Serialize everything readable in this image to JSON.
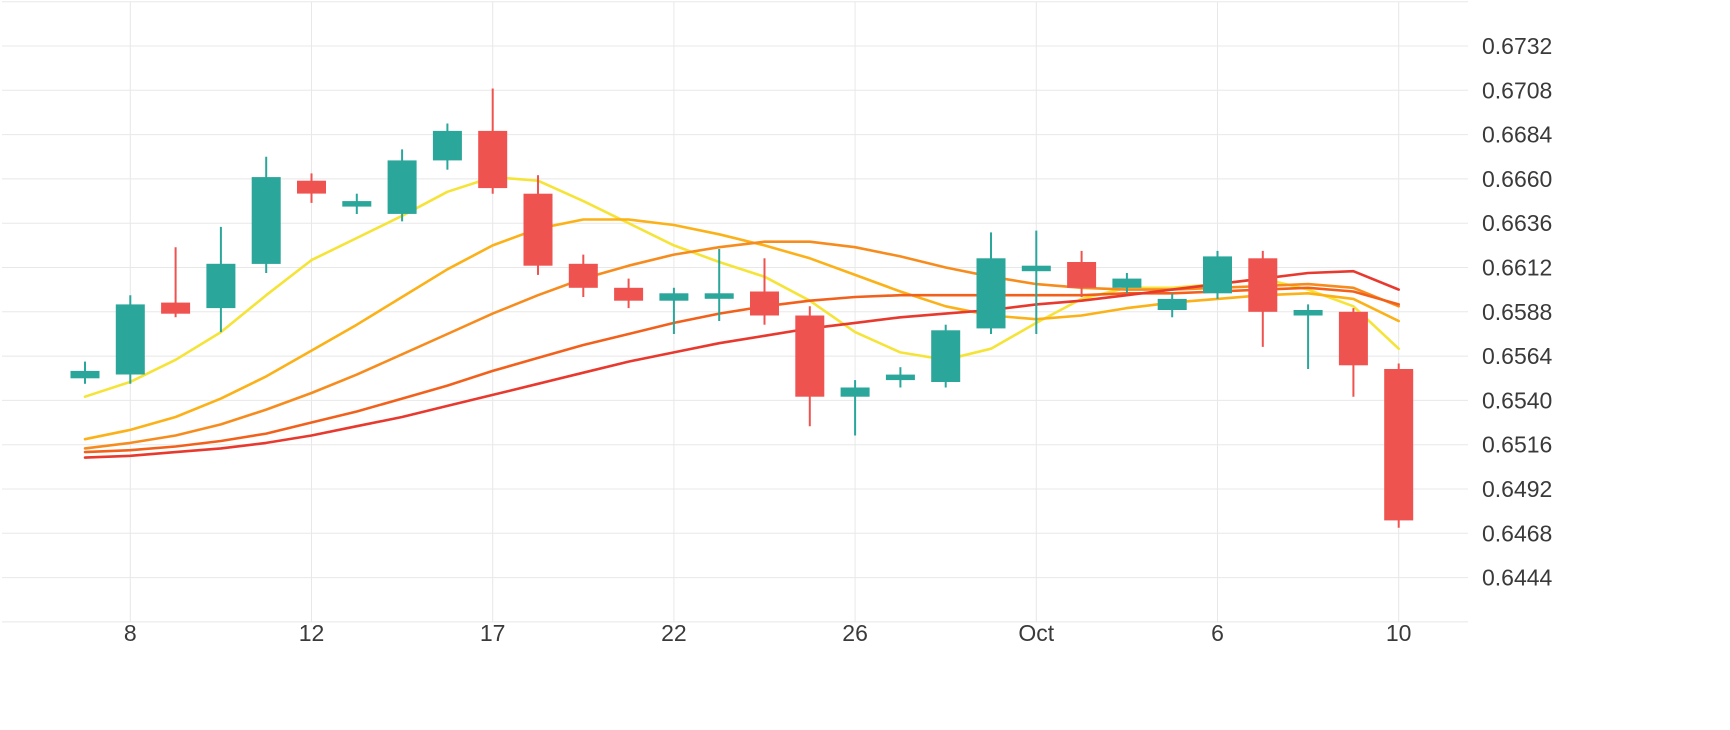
{
  "page": {
    "background": "#ffffff"
  },
  "chart_data": {
    "type": "candlestick",
    "title": "",
    "up_color": "#2aa69a",
    "down_color": "#ef5350",
    "grid_color": "#e8e8e8",
    "axis_text_color": "#3a3a3a",
    "y_axis": {
      "min": 0.6444,
      "max": 0.6732,
      "tick_step": 0.0024,
      "tick_values": [
        0.6732,
        0.6708,
        0.6684,
        0.666,
        0.6636,
        0.6612,
        0.6588,
        0.6564,
        0.654,
        0.6516,
        0.6492,
        0.6468,
        0.6444
      ],
      "tick_labels": [
        "0.6732",
        "0.6708",
        "0.6684",
        "0.6660",
        "0.6636",
        "0.6612",
        "0.6588",
        "0.6564",
        "0.6540",
        "0.6516",
        "0.6492",
        "0.6468",
        "0.6444"
      ],
      "extra_gridline_values": [
        0.6756,
        0.642
      ]
    },
    "x_axis": {
      "ticks": [
        {
          "index": 1,
          "label": "8"
        },
        {
          "index": 5,
          "label": "12"
        },
        {
          "index": 9,
          "label": "17"
        },
        {
          "index": 13,
          "label": "22"
        },
        {
          "index": 17,
          "label": "26"
        },
        {
          "index": 21,
          "label": "Oct"
        },
        {
          "index": 25,
          "label": "6"
        },
        {
          "index": 29,
          "label": "10"
        }
      ]
    },
    "candles": [
      {
        "open": 0.6552,
        "high": 0.6561,
        "low": 0.6549,
        "close": 0.6556
      },
      {
        "open": 0.6554,
        "high": 0.6597,
        "low": 0.6549,
        "close": 0.6592
      },
      {
        "open": 0.6593,
        "high": 0.6623,
        "low": 0.6585,
        "close": 0.6587
      },
      {
        "open": 0.659,
        "high": 0.6634,
        "low": 0.6577,
        "close": 0.6614
      },
      {
        "open": 0.6614,
        "high": 0.6672,
        "low": 0.6609,
        "close": 0.6661
      },
      {
        "open": 0.6659,
        "high": 0.6663,
        "low": 0.6647,
        "close": 0.6652
      },
      {
        "open": 0.6645,
        "high": 0.6652,
        "low": 0.6641,
        "close": 0.6648
      },
      {
        "open": 0.6641,
        "high": 0.6676,
        "low": 0.6637,
        "close": 0.667
      },
      {
        "open": 0.667,
        "high": 0.669,
        "low": 0.6665,
        "close": 0.6686
      },
      {
        "open": 0.6686,
        "high": 0.6709,
        "low": 0.6652,
        "close": 0.6655
      },
      {
        "open": 0.6652,
        "high": 0.6662,
        "low": 0.6608,
        "close": 0.6613
      },
      {
        "open": 0.6614,
        "high": 0.6619,
        "low": 0.6596,
        "close": 0.6601
      },
      {
        "open": 0.6601,
        "high": 0.6606,
        "low": 0.659,
        "close": 0.6594
      },
      {
        "open": 0.6594,
        "high": 0.6601,
        "low": 0.6576,
        "close": 0.6598
      },
      {
        "open": 0.6595,
        "high": 0.6622,
        "low": 0.6583,
        "close": 0.6598
      },
      {
        "open": 0.6599,
        "high": 0.6617,
        "low": 0.6581,
        "close": 0.6586
      },
      {
        "open": 0.6586,
        "high": 0.6591,
        "low": 0.6526,
        "close": 0.6542
      },
      {
        "open": 0.6542,
        "high": 0.6551,
        "low": 0.6521,
        "close": 0.6547
      },
      {
        "open": 0.6551,
        "high": 0.6558,
        "low": 0.6547,
        "close": 0.6554
      },
      {
        "open": 0.655,
        "high": 0.6581,
        "low": 0.6547,
        "close": 0.6578
      },
      {
        "open": 0.6579,
        "high": 0.6631,
        "low": 0.6576,
        "close": 0.6617
      },
      {
        "open": 0.661,
        "high": 0.6632,
        "low": 0.6576,
        "close": 0.6613
      },
      {
        "open": 0.6615,
        "high": 0.6621,
        "low": 0.6596,
        "close": 0.6601
      },
      {
        "open": 0.6601,
        "high": 0.6609,
        "low": 0.6598,
        "close": 0.6606
      },
      {
        "open": 0.6589,
        "high": 0.6598,
        "low": 0.6585,
        "close": 0.6595
      },
      {
        "open": 0.6598,
        "high": 0.6621,
        "low": 0.6595,
        "close": 0.6618
      },
      {
        "open": 0.6617,
        "high": 0.6621,
        "low": 0.6569,
        "close": 0.6588
      },
      {
        "open": 0.6586,
        "high": 0.6592,
        "low": 0.6557,
        "close": 0.6589
      },
      {
        "open": 0.6588,
        "high": 0.659,
        "low": 0.6542,
        "close": 0.6559
      },
      {
        "open": 0.6557,
        "high": 0.656,
        "low": 0.6471,
        "close": 0.6475
      }
    ],
    "ma_lines": [
      {
        "name": "ma-fast-yellow",
        "color": "#f5e437",
        "values": [
          0.6542,
          0.655,
          0.6562,
          0.6577,
          0.6597,
          0.6616,
          0.6628,
          0.664,
          0.6653,
          0.6661,
          0.6659,
          0.6648,
          0.6636,
          0.6624,
          0.6615,
          0.6607,
          0.6594,
          0.6577,
          0.6566,
          0.6562,
          0.6568,
          0.6582,
          0.6595,
          0.6601,
          0.6601,
          0.6603,
          0.6606,
          0.66,
          0.6591,
          0.6568
        ]
      },
      {
        "name": "ma-light-orange",
        "color": "#fbb117",
        "values": [
          0.6519,
          0.6524,
          0.6531,
          0.6541,
          0.6553,
          0.6567,
          0.6581,
          0.6596,
          0.6611,
          0.6624,
          0.6633,
          0.6638,
          0.6638,
          0.6635,
          0.663,
          0.6624,
          0.6617,
          0.6608,
          0.6599,
          0.6591,
          0.6586,
          0.6584,
          0.6586,
          0.659,
          0.6593,
          0.6595,
          0.6597,
          0.6598,
          0.6595,
          0.6583
        ]
      },
      {
        "name": "ma-orange",
        "color": "#f78c1e",
        "values": [
          0.6514,
          0.6517,
          0.6521,
          0.6527,
          0.6535,
          0.6544,
          0.6554,
          0.6565,
          0.6576,
          0.6587,
          0.6597,
          0.6606,
          0.6613,
          0.6619,
          0.6623,
          0.6626,
          0.6626,
          0.6623,
          0.6618,
          0.6612,
          0.6607,
          0.6603,
          0.6601,
          0.66,
          0.66,
          0.6601,
          0.6602,
          0.6603,
          0.6601,
          0.6591
        ]
      },
      {
        "name": "ma-dark-orange",
        "color": "#f2611c",
        "values": [
          0.6512,
          0.6513,
          0.6515,
          0.6518,
          0.6522,
          0.6528,
          0.6534,
          0.6541,
          0.6548,
          0.6556,
          0.6563,
          0.657,
          0.6576,
          0.6582,
          0.6587,
          0.6591,
          0.6594,
          0.6596,
          0.6597,
          0.6597,
          0.6597,
          0.6597,
          0.6597,
          0.6598,
          0.6598,
          0.6599,
          0.66,
          0.6601,
          0.6599,
          0.6592
        ]
      },
      {
        "name": "ma-slow-red",
        "color": "#e8392e",
        "values": [
          0.6509,
          0.651,
          0.6512,
          0.6514,
          0.6517,
          0.6521,
          0.6526,
          0.6531,
          0.6537,
          0.6543,
          0.6549,
          0.6555,
          0.6561,
          0.6566,
          0.6571,
          0.6575,
          0.6579,
          0.6582,
          0.6585,
          0.6587,
          0.6589,
          0.6592,
          0.6594,
          0.6597,
          0.66,
          0.6603,
          0.6606,
          0.6609,
          0.661,
          0.66
        ]
      }
    ]
  }
}
